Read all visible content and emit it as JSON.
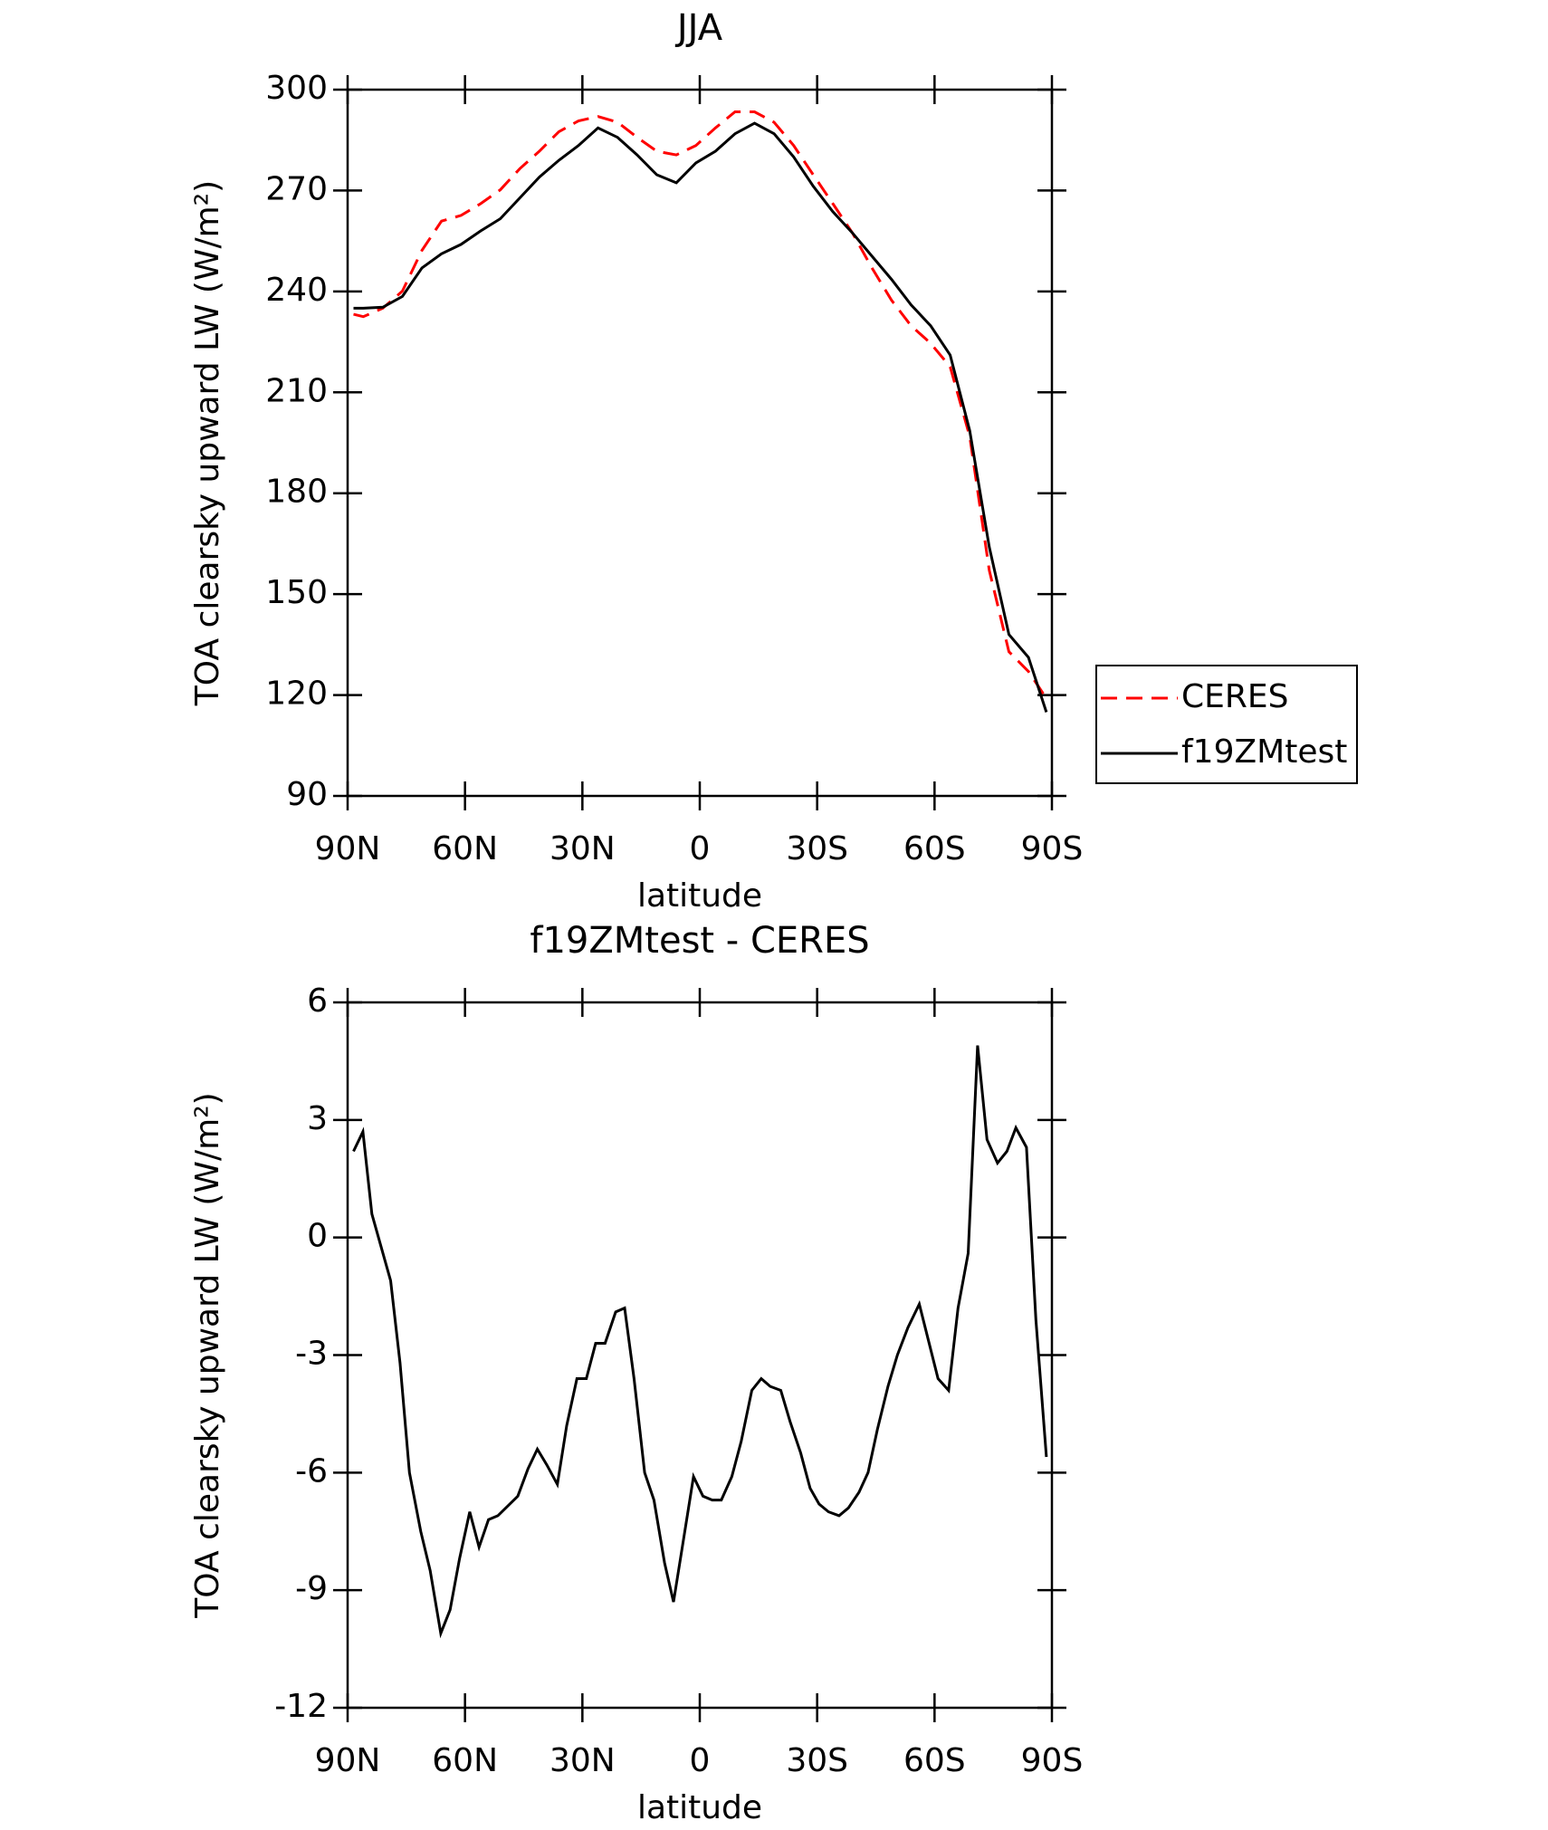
{
  "chart_data": [
    {
      "type": "line",
      "title": "JJA",
      "xlabel": "latitude",
      "ylabel": "TOA clearsky upward LW (W/m²)",
      "x": [
        88.5,
        86,
        81,
        76,
        71,
        66,
        61,
        56,
        51,
        46,
        41,
        36,
        31,
        26,
        21,
        16,
        11,
        6,
        1,
        -4,
        -9,
        -14,
        -19,
        -24,
        -29,
        -34,
        -39,
        -44,
        -49,
        -54,
        -59,
        -64,
        -69,
        -74,
        -79,
        -84,
        -88.6
      ],
      "series": [
        {
          "name": "CERES",
          "color": "#ff0000",
          "line_style": "dashed",
          "values": [
            233.2,
            232.5,
            235,
            240.1,
            252.2,
            260.9,
            262.6,
            266.1,
            270.2,
            276.5,
            281.7,
            287.5,
            290.7,
            292,
            290.3,
            285.8,
            281.7,
            280.6,
            283.4,
            288.6,
            293.4,
            293.4,
            290.3,
            283.4,
            274.7,
            266.1,
            257.4,
            247,
            237.4,
            229.8,
            224.6,
            217.6,
            196.9,
            157.1,
            132.9,
            127,
            119
          ]
        },
        {
          "name": "f19ZMtest",
          "color": "#000000",
          "line_style": "solid",
          "values": [
            235,
            235,
            235.3,
            238.5,
            247,
            251.2,
            254,
            258,
            261.6,
            267.8,
            274,
            279,
            283.4,
            288.6,
            285.8,
            280.6,
            274.7,
            272.3,
            278.2,
            281.7,
            286.9,
            290,
            286.9,
            280,
            271.3,
            263.7,
            257.4,
            250.5,
            243.6,
            236,
            229.8,
            221.1,
            198.6,
            164,
            138,
            131.2,
            114.9
          ]
        }
      ],
      "xlim": [
        90,
        -90
      ],
      "xticks": [
        {
          "value": 90,
          "label": "90N"
        },
        {
          "value": 60,
          "label": "60N"
        },
        {
          "value": 30,
          "label": "30N"
        },
        0,
        {
          "value": -30,
          "label": "30S"
        },
        {
          "value": -60,
          "label": "60S"
        },
        {
          "value": -90,
          "label": "90S"
        }
      ],
      "ylim": [
        90,
        300
      ],
      "yticks": [
        90,
        120,
        150,
        180,
        210,
        240,
        270,
        300
      ],
      "legend": "right",
      "grid": false
    },
    {
      "type": "line",
      "title": "f19ZMtest - CERES",
      "xlabel": "latitude",
      "ylabel": "TOA clearsky upward LW (W/m²)",
      "x": [
        88.5,
        86.1,
        83.8,
        79,
        76.6,
        74.2,
        71.3,
        68.9,
        66.2,
        63.8,
        61.4,
        58.8,
        56.4,
        54,
        51.6,
        46.5,
        43.9,
        41.5,
        39.1,
        36.4,
        34,
        31.4,
        29,
        26.6,
        24.2,
        21.5,
        19.2,
        16.8,
        14.1,
        11.7,
        9,
        6.7,
        4.3,
        1.6,
        -0.8,
        -3.2,
        -5.5,
        -8.2,
        -10.6,
        -13.3,
        -15.7,
        -18,
        -20.7,
        -23.1,
        -25.8,
        -28.2,
        -30.5,
        -32.9,
        -35.6,
        -38,
        -40.7,
        -43,
        -45.4,
        -48.1,
        -50.5,
        -53.2,
        -56.1,
        -60.9,
        -63.6,
        -66,
        -68.6,
        -71,
        -73.4,
        -76.1,
        -78.5,
        -80.8,
        -83.5,
        -85.9,
        -88.6
      ],
      "series": [
        {
          "color": "#000000",
          "line_style": "solid",
          "values": [
            2.2,
            2.7,
            0.6,
            -1.1,
            -3.2,
            -6.0,
            -7.5,
            -8.5,
            -10.1,
            -9.5,
            -8.2,
            -7.0,
            -7.9,
            -7.2,
            -7.1,
            -6.6,
            -5.9,
            -5.4,
            -5.8,
            -6.3,
            -4.8,
            -3.6,
            -3.6,
            -2.7,
            -2.7,
            -1.9,
            -1.8,
            -3.6,
            -6.0,
            -6.7,
            -8.3,
            -9.3,
            -7.8,
            -6.1,
            -6.6,
            -6.7,
            -6.7,
            -6.1,
            -5.2,
            -3.9,
            -3.6,
            -3.8,
            -3.9,
            -4.7,
            -5.5,
            -6.4,
            -6.8,
            -7.0,
            -7.1,
            -6.9,
            -6.5,
            -6.0,
            -4.9,
            -3.8,
            -3.0,
            -2.3,
            -1.7,
            -3.6,
            -3.9,
            -1.8,
            -0.4,
            4.9,
            2.5,
            1.9,
            2.2,
            2.8,
            2.3,
            -2.1,
            -5.6
          ]
        }
      ],
      "xlim": [
        90,
        -90
      ],
      "xticks": [
        {
          "value": 90,
          "label": "90N"
        },
        {
          "value": 60,
          "label": "60N"
        },
        {
          "value": 30,
          "label": "30N"
        },
        0,
        {
          "value": -30,
          "label": "30S"
        },
        {
          "value": -60,
          "label": "60S"
        },
        {
          "value": -90,
          "label": "90S"
        }
      ],
      "ylim": [
        -12,
        6
      ],
      "yticks": [
        -12,
        -9,
        -6,
        -3,
        0,
        3,
        6
      ],
      "grid": false
    }
  ]
}
